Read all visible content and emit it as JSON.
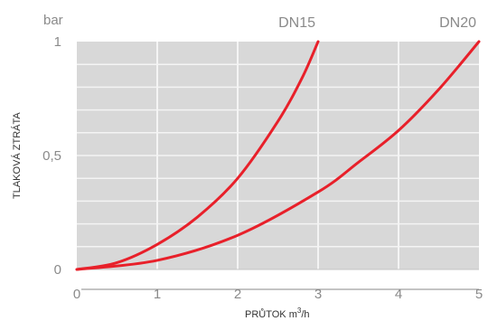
{
  "chart_data": {
    "type": "line",
    "ylabel": "TLAKOVÁ ZTRÁTA",
    "xlabel_prefix": "PRŮTOK m",
    "xlabel_sup": "3",
    "xlabel_suffix": "/h",
    "y_unit": "bar",
    "xlim": [
      0,
      5
    ],
    "ylim": [
      0,
      1
    ],
    "x_ticks": [
      0,
      1,
      2,
      3,
      4,
      5
    ],
    "x_tick_labels": [
      "0",
      "1",
      "2",
      "3",
      "4",
      "5"
    ],
    "y_ticks": [
      0,
      0.5,
      1
    ],
    "y_tick_labels": [
      "0",
      "0,5",
      "1"
    ],
    "grid": true,
    "series": [
      {
        "name": "DN15",
        "x": [
          0,
          0.5,
          1.0,
          1.5,
          2.0,
          2.5,
          2.8,
          3.0
        ],
        "y": [
          0,
          0.03,
          0.11,
          0.23,
          0.4,
          0.65,
          0.84,
          1.0
        ]
      },
      {
        "name": "DN20",
        "x": [
          0,
          1.0,
          2.0,
          3.0,
          3.5,
          4.0,
          4.5,
          5.0
        ],
        "y": [
          0,
          0.04,
          0.15,
          0.34,
          0.47,
          0.61,
          0.79,
          1.0
        ]
      }
    ],
    "colors": {
      "plot_background": "#d8d8d8",
      "grid": "#f4f4f4",
      "curve": "#e8202a",
      "text": "#8a8a8a"
    }
  }
}
